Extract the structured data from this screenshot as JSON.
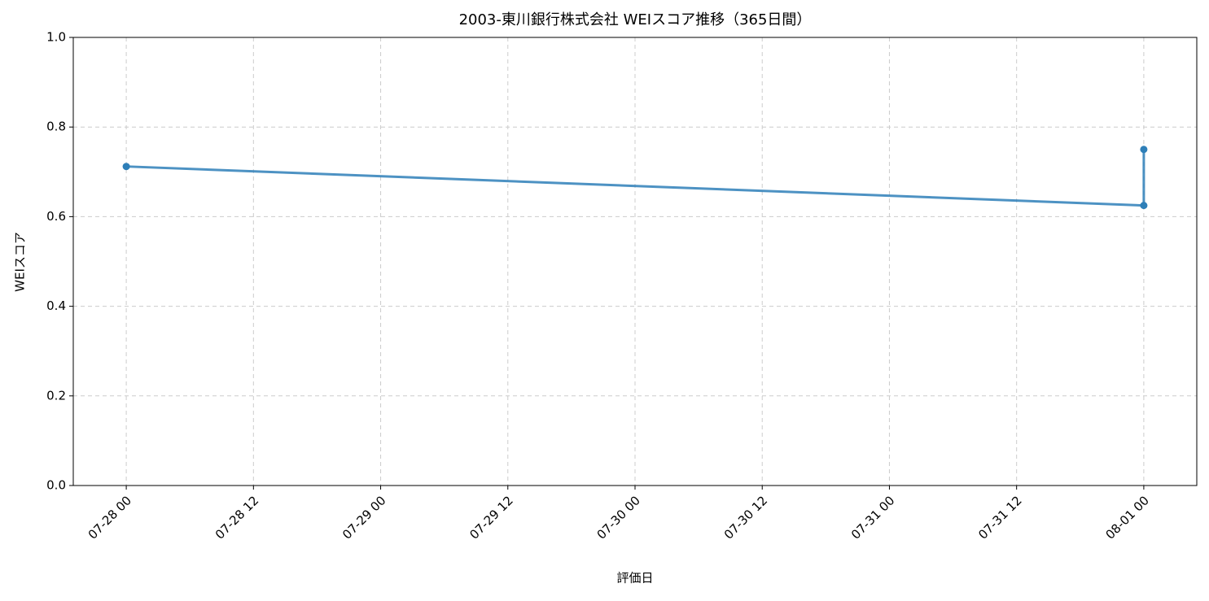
{
  "chart_data": {
    "type": "line",
    "title": "2003-東川銀行株式会社 WEIスコア推移（365日間）",
    "xlabel": "評価日",
    "ylabel": "WEIスコア",
    "x": [
      "07-28 00",
      "08-01 00",
      "08-01 00"
    ],
    "values": [
      0.712,
      0.625,
      0.75
    ],
    "color": "#2e7fb8",
    "xlim": [
      "07-27 19",
      "08-01 05"
    ],
    "xticks": [
      "07-28 00",
      "07-28 12",
      "07-29 00",
      "07-29 12",
      "07-30 00",
      "07-30 12",
      "07-31 00",
      "07-31 12",
      "08-01 00"
    ],
    "ylim": [
      0,
      1
    ],
    "yticks": [
      {
        "value": 0,
        "label": "0.0"
      },
      {
        "value": 0.2,
        "label": "0.2"
      },
      {
        "value": 0.4,
        "label": "0.4"
      },
      {
        "value": 0.6,
        "label": "0.6"
      },
      {
        "value": 0.8,
        "label": "0.8"
      },
      {
        "value": 1,
        "label": "1.0"
      }
    ],
    "grid": true
  }
}
